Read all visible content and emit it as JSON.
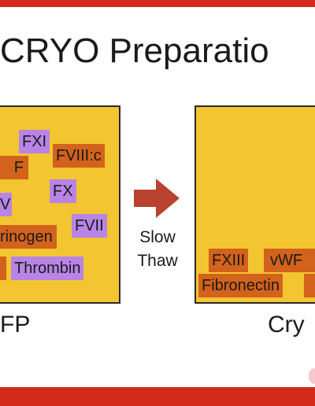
{
  "title": "CRYO Preparatio",
  "ffp_panel": {
    "caption": "FP",
    "factors": [
      "FXI",
      "FVIII:c",
      "F",
      "FX",
      "V",
      "FVII",
      "rinogen",
      "Thrombin"
    ]
  },
  "arrow_label": [
    "Slow",
    "Thaw"
  ],
  "cryo_panel": {
    "caption": "Cry",
    "factors": [
      "FXIII",
      "vWF",
      "Fibronectin"
    ]
  }
}
